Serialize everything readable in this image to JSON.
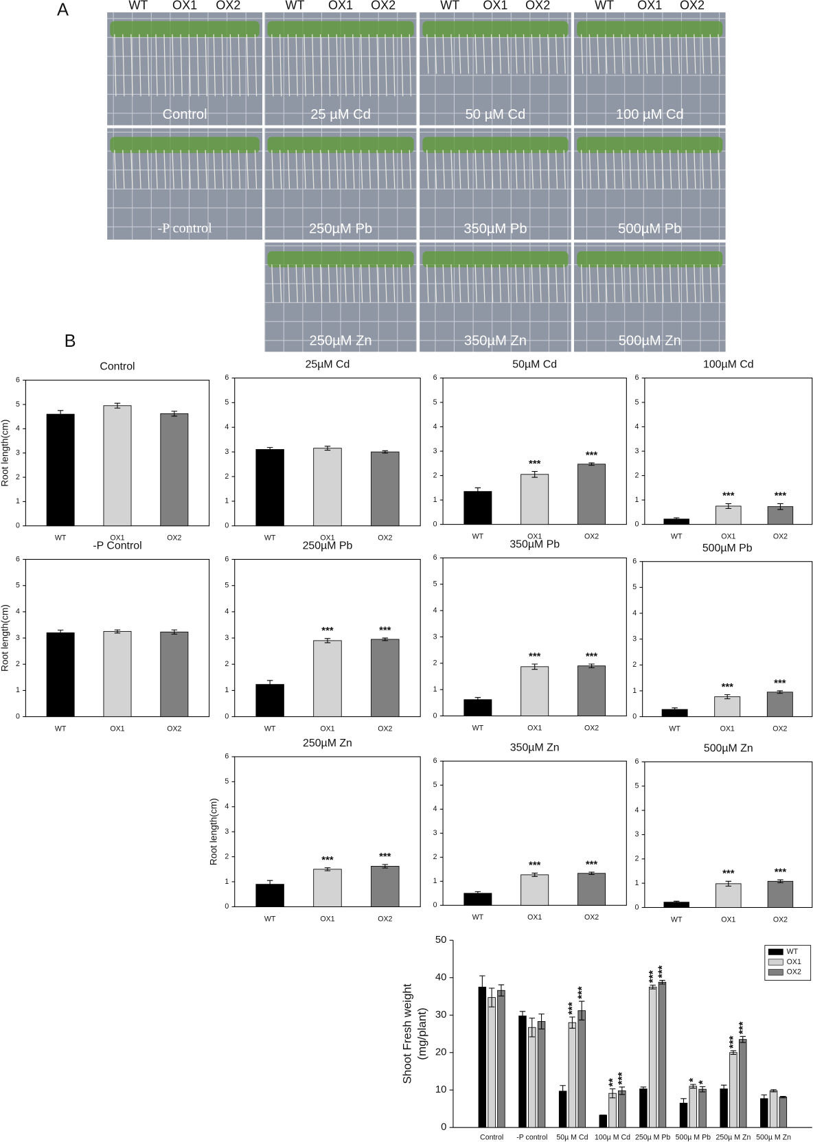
{
  "panel_a": {
    "label": "A",
    "genotypes": [
      "WT",
      "OX1",
      "OX2"
    ],
    "plates": [
      "Control",
      "25 µM Cd",
      "50 µM Cd",
      "100 µM Cd",
      "-P control",
      "250µM Pb",
      "350µM Pb",
      "500µM Pb",
      "250µM Zn",
      "350µM Zn",
      "500µM Zn"
    ]
  },
  "panel_b_label": "B",
  "chart_data": [
    {
      "type": "bar",
      "title": "Control",
      "ylabel": "Root length(cm)",
      "categories": [
        "WT",
        "OX1",
        "OX2"
      ],
      "values": [
        4.6,
        4.95,
        4.62
      ],
      "errors": [
        0.15,
        0.1,
        0.1
      ],
      "annotations": [
        null,
        null,
        null
      ],
      "colors": [
        "#000000",
        "#d3d3d3",
        "#808080"
      ],
      "ylim": [
        0,
        6
      ],
      "yticks": [
        0,
        1,
        2,
        3,
        4,
        5,
        6
      ]
    },
    {
      "type": "bar",
      "title": "25µM Cd",
      "categories": [
        "WT",
        "OX1",
        "OX2"
      ],
      "values": [
        3.1,
        3.15,
        3.0
      ],
      "errors": [
        0.08,
        0.08,
        0.05
      ],
      "annotations": [
        null,
        null,
        null
      ],
      "colors": [
        "#000000",
        "#d3d3d3",
        "#808080"
      ],
      "ylim": [
        0,
        6
      ],
      "yticks": [
        0,
        1,
        2,
        3,
        4,
        5,
        6
      ]
    },
    {
      "type": "bar",
      "title": "50µM Cd",
      "categories": [
        "WT",
        "OX1",
        "OX2"
      ],
      "values": [
        1.35,
        2.05,
        2.47
      ],
      "errors": [
        0.15,
        0.12,
        0.05
      ],
      "annotations": [
        null,
        "***",
        "***"
      ],
      "colors": [
        "#000000",
        "#d3d3d3",
        "#808080"
      ],
      "ylim": [
        0,
        6
      ],
      "yticks": [
        0,
        1,
        2,
        3,
        4,
        5,
        6
      ]
    },
    {
      "type": "bar",
      "title": "100µM Cd",
      "categories": [
        "WT",
        "OX1",
        "OX2"
      ],
      "values": [
        0.22,
        0.75,
        0.73
      ],
      "errors": [
        0.05,
        0.1,
        0.12
      ],
      "annotations": [
        null,
        "***",
        "***"
      ],
      "colors": [
        "#000000",
        "#d3d3d3",
        "#808080"
      ],
      "ylim": [
        0,
        6
      ],
      "yticks": [
        0,
        1,
        2,
        3,
        4,
        5,
        6
      ]
    },
    {
      "type": "bar",
      "title": "-P Control",
      "ylabel": "Root length(cm)",
      "categories": [
        "WT",
        "OX1",
        "OX2"
      ],
      "values": [
        3.2,
        3.25,
        3.23
      ],
      "errors": [
        0.1,
        0.06,
        0.08
      ],
      "annotations": [
        null,
        null,
        null
      ],
      "colors": [
        "#000000",
        "#d3d3d3",
        "#808080"
      ],
      "ylim": [
        0,
        6
      ],
      "yticks": [
        0,
        1,
        2,
        3,
        4,
        5,
        6
      ]
    },
    {
      "type": "bar",
      "title": "250µM Pb",
      "categories": [
        "WT",
        "OX1",
        "OX2"
      ],
      "values": [
        1.23,
        2.9,
        2.95
      ],
      "errors": [
        0.15,
        0.08,
        0.05
      ],
      "annotations": [
        null,
        "***",
        "***"
      ],
      "colors": [
        "#000000",
        "#d3d3d3",
        "#808080"
      ],
      "ylim": [
        0,
        6
      ],
      "yticks": [
        0,
        1,
        2,
        3,
        4,
        5,
        6
      ]
    },
    {
      "type": "bar",
      "title": "350µM Pb",
      "categories": [
        "WT",
        "OX1",
        "OX2"
      ],
      "values": [
        0.62,
        1.87,
        1.9
      ],
      "errors": [
        0.08,
        0.1,
        0.07
      ],
      "annotations": [
        null,
        "***",
        "***"
      ],
      "colors": [
        "#000000",
        "#d3d3d3",
        "#808080"
      ],
      "ylim": [
        0,
        6
      ],
      "yticks": [
        0,
        1,
        2,
        3,
        4,
        5,
        6
      ]
    },
    {
      "type": "bar",
      "title": "500µM Pb",
      "categories": [
        "WT",
        "OX1",
        "OX2"
      ],
      "values": [
        0.28,
        0.77,
        0.95
      ],
      "errors": [
        0.06,
        0.08,
        0.05
      ],
      "annotations": [
        null,
        "***",
        "***"
      ],
      "colors": [
        "#000000",
        "#d3d3d3",
        "#808080"
      ],
      "ylim": [
        0,
        6
      ],
      "yticks": [
        0,
        1,
        2,
        3,
        4,
        5,
        6
      ]
    },
    {
      "type": "bar",
      "title": "250µM Zn",
      "ylabel": "Root length(cm)",
      "categories": [
        "WT",
        "OX1",
        "OX2"
      ],
      "values": [
        0.9,
        1.5,
        1.62
      ],
      "errors": [
        0.15,
        0.06,
        0.07
      ],
      "annotations": [
        null,
        "***",
        "***"
      ],
      "colors": [
        "#000000",
        "#d3d3d3",
        "#808080"
      ],
      "ylim": [
        0,
        6
      ],
      "yticks": [
        0,
        1,
        2,
        3,
        4,
        5,
        6
      ]
    },
    {
      "type": "bar",
      "title": "350µM Zn",
      "categories": [
        "WT",
        "OX1",
        "OX2"
      ],
      "values": [
        0.5,
        1.27,
        1.33
      ],
      "errors": [
        0.07,
        0.07,
        0.05
      ],
      "annotations": [
        null,
        "***",
        "***"
      ],
      "colors": [
        "#000000",
        "#d3d3d3",
        "#808080"
      ],
      "ylim": [
        0,
        6
      ],
      "yticks": [
        0,
        1,
        2,
        3,
        4,
        5,
        6
      ]
    },
    {
      "type": "bar",
      "title": "500µM Zn",
      "categories": [
        "WT",
        "OX1",
        "OX2"
      ],
      "values": [
        0.22,
        0.98,
        1.08
      ],
      "errors": [
        0.04,
        0.1,
        0.06
      ],
      "annotations": [
        null,
        "***",
        "***"
      ],
      "colors": [
        "#000000",
        "#d3d3d3",
        "#808080"
      ],
      "ylim": [
        0,
        6
      ],
      "yticks": [
        0,
        1,
        2,
        3,
        4,
        5,
        6
      ]
    },
    {
      "type": "grouped_bar",
      "ylabel": [
        "Shoot Fresh weight",
        "(mg/plant)"
      ],
      "legend": "upper right",
      "categories": [
        "Control",
        "-P control",
        "50µ M Cd",
        "100µ M Cd",
        "250µ M Pb",
        "500µ M Pb",
        "250µ M Zn",
        "500µ M Zn"
      ],
      "ylim": [
        0,
        50
      ],
      "yticks": [
        0,
        10,
        20,
        30,
        40,
        50
      ],
      "series": [
        {
          "name": "WT",
          "color": "#000000",
          "values": [
            37.5,
            29.8,
            9.7,
            3.3,
            10.3,
            6.5,
            10.3,
            7.7
          ],
          "errors": [
            3,
            1.2,
            1.5,
            0,
            0.5,
            1.2,
            1,
            1
          ],
          "annotations": [
            null,
            null,
            null,
            null,
            null,
            null,
            null,
            null
          ]
        },
        {
          "name": "OX1",
          "color": "#d3d3d3",
          "values": [
            34.7,
            26.7,
            28,
            9.1,
            37.5,
            11,
            20,
            9.8
          ],
          "errors": [
            2.5,
            2.5,
            1.5,
            1.2,
            0.5,
            0.5,
            0.5,
            0.3
          ],
          "annotations": [
            null,
            null,
            "***",
            "**",
            "***",
            "*",
            "***",
            null
          ]
        },
        {
          "name": "OX2",
          "color": "#808080",
          "values": [
            36.6,
            28.3,
            31.2,
            9.8,
            38.8,
            10.2,
            23.5,
            8.1
          ],
          "errors": [
            1.5,
            2,
            2.5,
            1,
            0.5,
            0.7,
            0.8,
            0.2
          ],
          "annotations": [
            null,
            null,
            "***",
            "***",
            "***",
            "*",
            "***",
            null
          ]
        }
      ]
    }
  ]
}
